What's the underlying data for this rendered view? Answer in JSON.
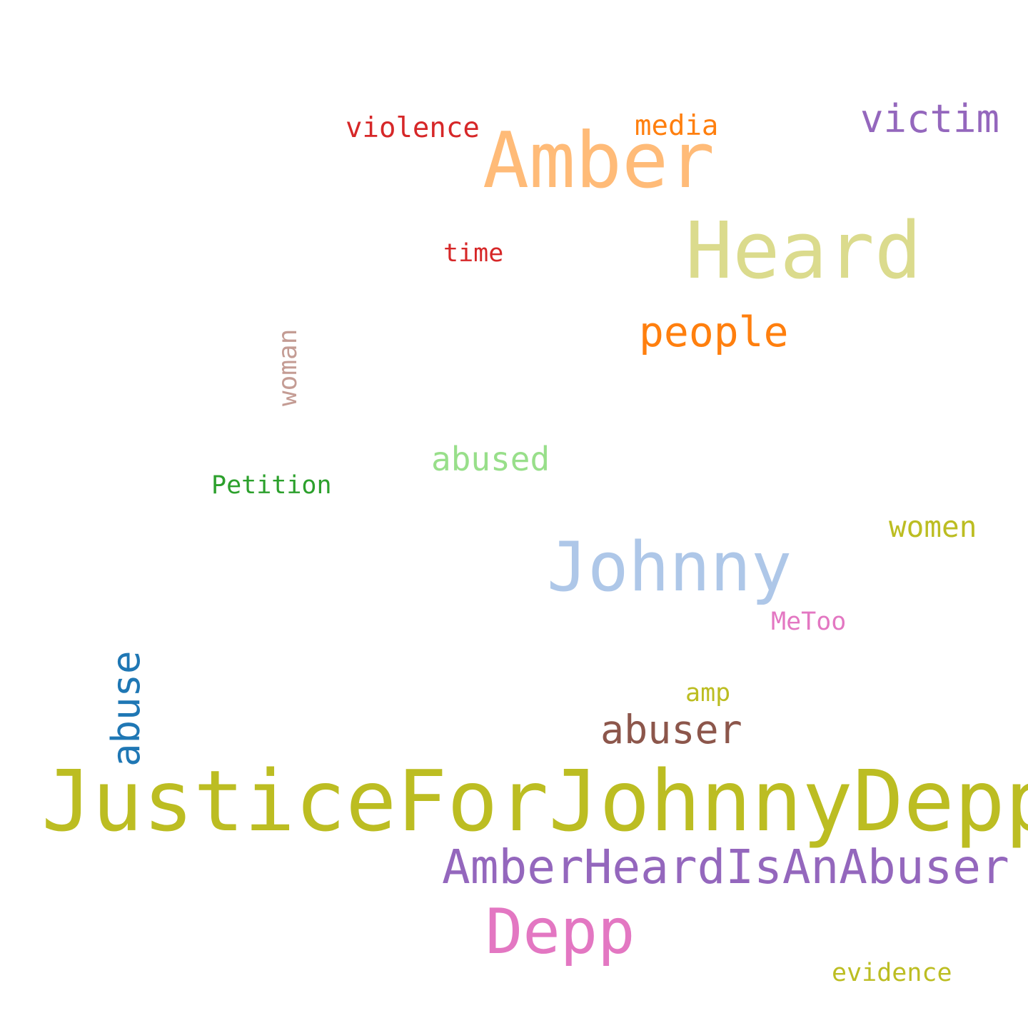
{
  "words": [
    {
      "text": "JusticeForJohnnyDepp",
      "color": "#bcbd22"
    },
    {
      "text": "Amber",
      "color": "#ffbb78"
    },
    {
      "text": "Heard",
      "color": "#dbdb8d"
    },
    {
      "text": "Johnny",
      "color": "#aec7e8"
    },
    {
      "text": "Depp",
      "color": "#e377c2"
    },
    {
      "text": "AmberHeardIsAnAbuser",
      "color": "#9467bd"
    },
    {
      "text": "people",
      "color": "#ff7f0e"
    },
    {
      "text": "abuser",
      "color": "#8c564b"
    },
    {
      "text": "victim",
      "color": "#9467bd"
    },
    {
      "text": "abuse",
      "color": "#1f77b4"
    },
    {
      "text": "abused",
      "color": "#98df8a"
    },
    {
      "text": "women",
      "color": "#bcbd22"
    },
    {
      "text": "violence",
      "color": "#d62728"
    },
    {
      "text": "media",
      "color": "#ff7f0e"
    },
    {
      "text": "Petition",
      "color": "#2ca02c"
    },
    {
      "text": "time",
      "color": "#d62728"
    },
    {
      "text": "woman",
      "color": "#c49c94"
    },
    {
      "text": "MeToo",
      "color": "#e377c2"
    },
    {
      "text": "amp",
      "color": "#bcbd22"
    },
    {
      "text": "evidence",
      "color": "#bcbd22"
    }
  ]
}
